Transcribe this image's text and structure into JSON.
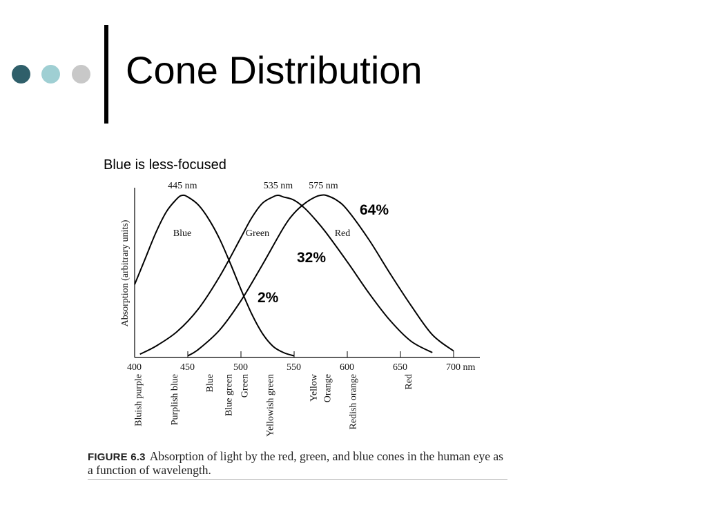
{
  "slide": {
    "title": "Cone Distribution",
    "subtitle": "Blue is less-focused",
    "bullet_colors": [
      "#2f5f6a",
      "#9fcfd3",
      "#c8c8c8"
    ]
  },
  "figure": {
    "label": "FIGURE 6.3",
    "caption": "Absorption of light by the red, green, and blue cones in the human eye as a function of wavelength."
  },
  "chart_data": {
    "type": "line",
    "title": "",
    "ylabel": "Absorption (arbitrary units)",
    "xlabel": "nm",
    "xlim": [
      400,
      700
    ],
    "ylim": [
      0,
      1
    ],
    "x_ticks": [
      400,
      450,
      500,
      550,
      600,
      650,
      700
    ],
    "x_tick_labels": [
      "400",
      "450",
      "500",
      "550",
      "600",
      "650",
      "700 nm"
    ],
    "grid": false,
    "series": [
      {
        "name": "Blue",
        "peak_label": "445 nm",
        "color": "#000000",
        "x": [
          400,
          410,
          420,
          430,
          440,
          445,
          450,
          460,
          470,
          480,
          490,
          500,
          510,
          520,
          530,
          540,
          550
        ],
        "y": [
          0.45,
          0.61,
          0.77,
          0.9,
          0.98,
          1.0,
          0.99,
          0.94,
          0.85,
          0.73,
          0.58,
          0.42,
          0.27,
          0.15,
          0.07,
          0.03,
          0.01
        ]
      },
      {
        "name": "Green",
        "peak_label": "535 nm",
        "color": "#000000",
        "x": [
          405,
          420,
          440,
          460,
          480,
          500,
          510,
          520,
          530,
          535,
          540,
          550,
          560,
          570,
          580,
          600,
          620,
          640,
          660,
          680
        ],
        "y": [
          0.02,
          0.07,
          0.16,
          0.3,
          0.5,
          0.74,
          0.86,
          0.95,
          0.99,
          1.0,
          0.99,
          0.97,
          0.92,
          0.85,
          0.77,
          0.59,
          0.4,
          0.23,
          0.1,
          0.03
        ]
      },
      {
        "name": "Red",
        "peak_label": "575 nm",
        "color": "#000000",
        "x": [
          450,
          460,
          480,
          500,
          520,
          540,
          550,
          560,
          570,
          575,
          580,
          590,
          600,
          620,
          640,
          660,
          680,
          700
        ],
        "y": [
          0.01,
          0.05,
          0.17,
          0.35,
          0.57,
          0.8,
          0.89,
          0.95,
          0.99,
          1.0,
          1.0,
          0.97,
          0.91,
          0.73,
          0.52,
          0.32,
          0.14,
          0.04
        ]
      }
    ],
    "color_bands": [
      {
        "label": "Bluish purple",
        "x": 403
      },
      {
        "label": "Purplish blue",
        "x": 437
      },
      {
        "label": "Blue",
        "x": 470
      },
      {
        "label": "Blue green",
        "x": 488
      },
      {
        "label": "Green",
        "x": 503
      },
      {
        "label": "Yellowish green",
        "x": 527
      },
      {
        "label": "Yellow",
        "x": 568
      },
      {
        "label": "Orange",
        "x": 581
      },
      {
        "label": "Redish orange",
        "x": 605
      },
      {
        "label": "Red",
        "x": 657
      }
    ],
    "annotations": [
      {
        "text": "64%",
        "series": "Red"
      },
      {
        "text": "32%",
        "series": "Green"
      },
      {
        "text": "2%",
        "series": "Blue"
      }
    ]
  }
}
